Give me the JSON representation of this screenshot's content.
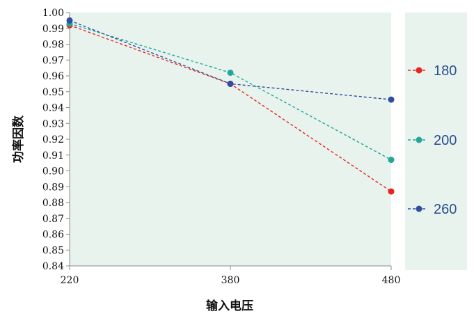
{
  "chart_data": {
    "type": "line",
    "xlabel": "输入电压",
    "ylabel": "功率因数",
    "x": [
      "220",
      "380",
      "480"
    ],
    "ylim": [
      0.84,
      1.0
    ],
    "yticks": [
      "0.84",
      "0.85",
      "0.86",
      "0.87",
      "0.88",
      "0.89",
      "0.90",
      "0.91",
      "0.92",
      "0.93",
      "0.94",
      "0.95",
      "0.96",
      "0.97",
      "0.98",
      "0.99",
      "1.00"
    ],
    "legend_position": "right",
    "grid": false,
    "background": "#e8f3ee",
    "series": [
      {
        "name": "180",
        "color": "#e8241f",
        "values": [
          0.992,
          0.955,
          0.887
        ]
      },
      {
        "name": "200",
        "color": "#22a89a",
        "values": [
          0.993,
          0.962,
          0.907
        ]
      },
      {
        "name": "260",
        "color": "#2f4f9e",
        "values": [
          0.995,
          0.955,
          0.945
        ]
      }
    ]
  }
}
